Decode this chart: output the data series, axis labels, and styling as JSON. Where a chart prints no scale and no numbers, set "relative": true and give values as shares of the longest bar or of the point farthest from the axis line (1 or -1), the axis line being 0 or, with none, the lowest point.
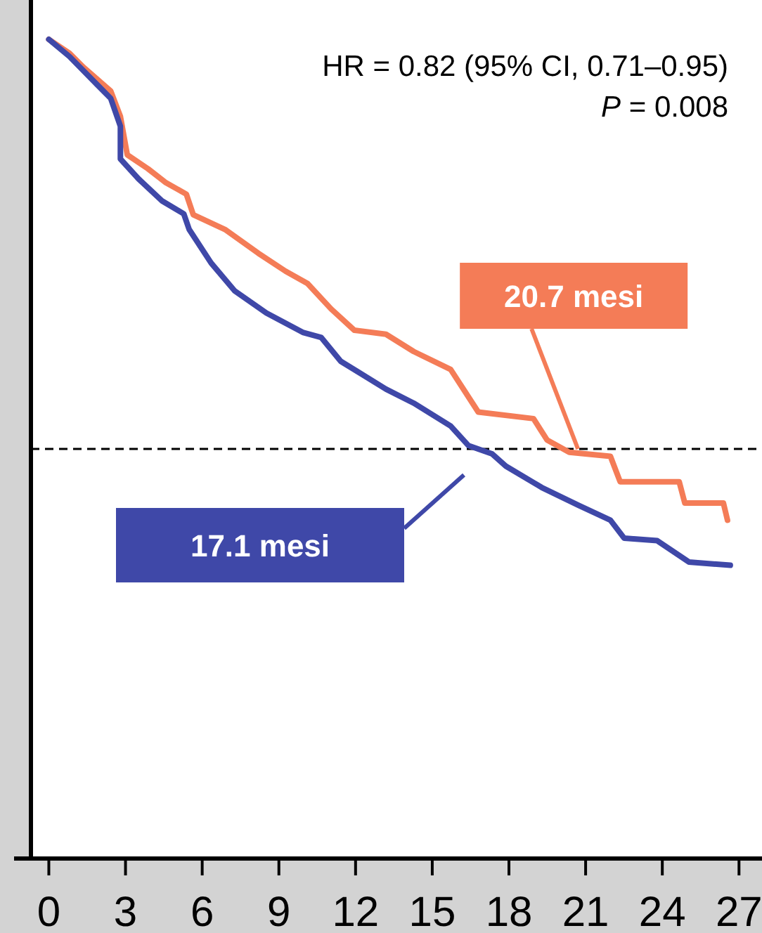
{
  "chart_data": {
    "type": "line",
    "relative": true,
    "xlim": [
      -0.7,
      27.9
    ],
    "xticks": [
      0,
      3,
      6,
      9,
      12,
      15,
      18,
      21,
      24,
      27
    ],
    "tick_labels": "x",
    "grid": false,
    "legend": false,
    "marker": "none",
    "line_style": "solid",
    "series": [
      {
        "color": "#f47c57",
        "x": [
          0,
          0.81,
          1.35,
          2.42,
          2.8,
          3.07,
          3.88,
          4.58,
          5.38,
          5.65,
          6.89,
          8.19,
          9.26,
          10.12,
          11.04,
          11.95,
          13.19,
          14.27,
          15.72,
          16.8,
          18.96,
          19.49,
          20.36,
          21.97,
          22.35,
          24.66,
          24.88,
          26.39,
          26.55
        ],
        "values": [
          1,
          0.983,
          0.966,
          0.937,
          0.906,
          0.859,
          0.842,
          0.825,
          0.811,
          0.786,
          0.768,
          0.739,
          0.717,
          0.702,
          0.671,
          0.645,
          0.64,
          0.619,
          0.597,
          0.545,
          0.537,
          0.511,
          0.496,
          0.491,
          0.46,
          0.46,
          0.434,
          0.434,
          0.413
        ]
      },
      {
        "color": "#3f48a8",
        "x": [
          0,
          0.81,
          1.88,
          2.42,
          2.8,
          2.8,
          3.5,
          4.42,
          5.28,
          5.49,
          6.35,
          7.27,
          8.51,
          9.96,
          10.66,
          11.42,
          13.19,
          14.27,
          15.72,
          16.42,
          17.34,
          17.88,
          19.28,
          20.73,
          21.97,
          22.51,
          23.8,
          25.04,
          26.66
        ],
        "values": [
          1,
          0.979,
          0.945,
          0.928,
          0.894,
          0.854,
          0.83,
          0.803,
          0.787,
          0.768,
          0.727,
          0.693,
          0.666,
          0.642,
          0.636,
          0.607,
          0.573,
          0.556,
          0.528,
          0.504,
          0.494,
          0.479,
          0.453,
          0.431,
          0.413,
          0.391,
          0.388,
          0.362,
          0.358
        ]
      }
    ],
    "ref_lines": [
      {
        "axis": "y",
        "value": 0.5,
        "color": "#000000",
        "line_style": "dashed"
      }
    ],
    "annotations": [
      "HR = 0.82 (95% CI, 0.71–0.95)",
      "P = 0.008",
      {
        "text": "20.7 mesi",
        "x": 20.7,
        "y": 0.5
      },
      "17.1 mesi"
    ]
  }
}
